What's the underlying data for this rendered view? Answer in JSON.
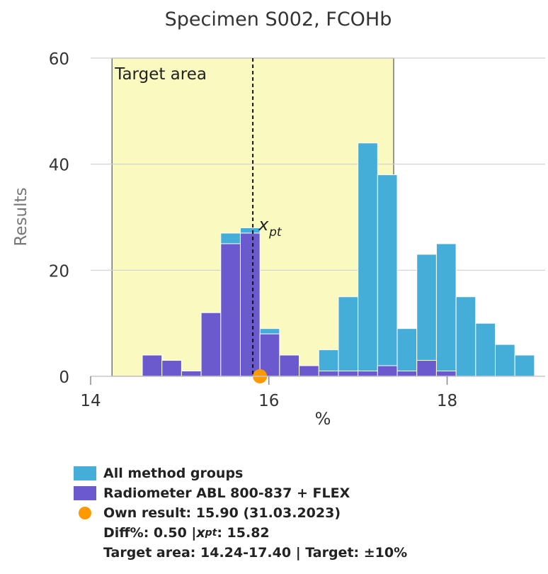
{
  "chart_data": {
    "type": "bar",
    "title": "Specimen S002, FCOHb",
    "xlabel": "%",
    "ylabel": "Results",
    "xlim": [
      14,
      19.1
    ],
    "ylim": [
      0,
      60
    ],
    "x_ticks": [
      14,
      16,
      18
    ],
    "x_tick_labels": [
      "14",
      "16",
      "18"
    ],
    "y_ticks": [
      0,
      20,
      40,
      60
    ],
    "y_tick_labels": [
      "0",
      "20",
      "40",
      "60"
    ],
    "bin_width": 0.22,
    "bin_starts": [
      14.58,
      14.8,
      15.02,
      15.24,
      15.46,
      15.68,
      15.9,
      16.12,
      16.34,
      16.56,
      16.78,
      17.0,
      17.22,
      17.44,
      17.66,
      17.88,
      18.1,
      18.32,
      18.54,
      18.76,
      18.98
    ],
    "grid": true,
    "series": [
      {
        "name": "All method groups",
        "color": "#45aed8",
        "values": [
          4,
          3,
          1,
          12,
          27,
          28,
          9,
          4,
          2,
          5,
          15,
          44,
          38,
          9,
          23,
          25,
          15,
          10,
          6,
          4,
          0
        ]
      },
      {
        "name": "Radiometer ABL 800-837 + FLEX",
        "color": "#6a5acd",
        "values": [
          4,
          3,
          1,
          12,
          25,
          27,
          8,
          4,
          2,
          1,
          1,
          1,
          2,
          1,
          3,
          1,
          0,
          0,
          0,
          0,
          0
        ]
      }
    ],
    "target_area": {
      "label": "Target area",
      "from": 14.24,
      "to": 17.4,
      "color": "#fafac0"
    },
    "xpt": {
      "value": 15.82,
      "label": "x",
      "label_sub": "pt"
    },
    "own_result": {
      "value": 15.9,
      "y": 0,
      "color": "#ff9900"
    },
    "legend_position": "bottom"
  },
  "legend": {
    "all_label": "All method groups",
    "radiometer_label": "Radiometer ABL 800-837 + FLEX",
    "own_result_label": "Own result: 15.90 (31.03.2023)",
    "diff_prefix": "Diff%: 0.50 | ",
    "xpt_letter": "x",
    "xpt_sub": "pt",
    "xpt_suffix": ": 15.82",
    "target_line": "Target area: 14.24-17.40 | Target: ±10%"
  }
}
